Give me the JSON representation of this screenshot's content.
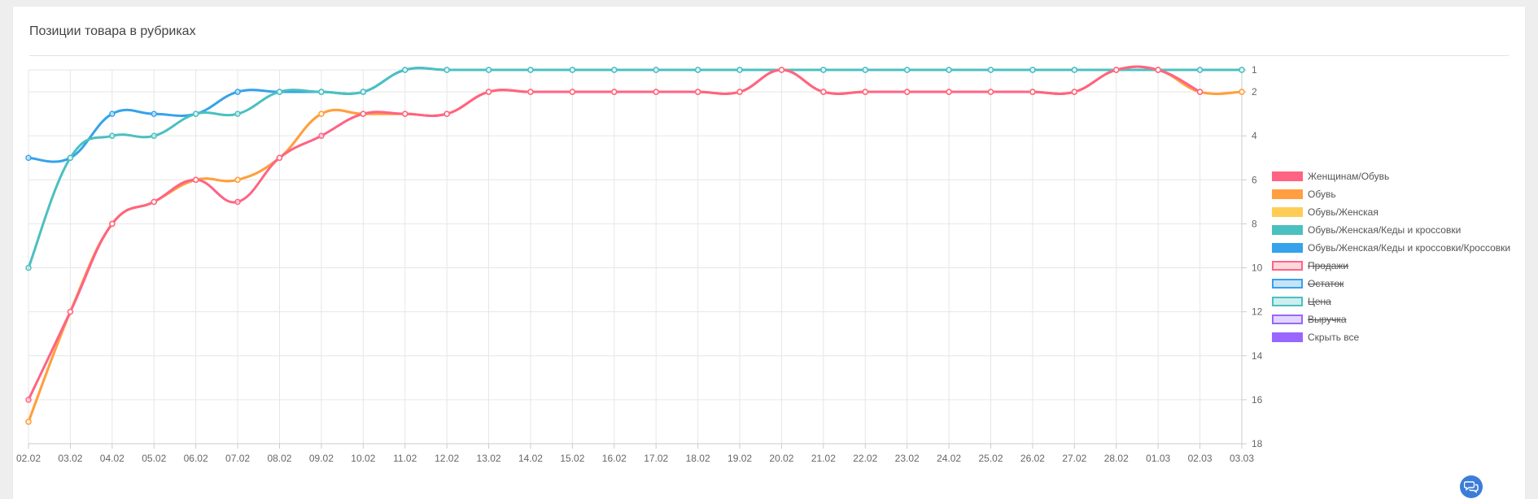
{
  "page": {
    "title": "Позиции товара в рубриках"
  },
  "chart_data": {
    "type": "line",
    "categories": [
      "02.02",
      "03.02",
      "04.02",
      "05.02",
      "06.02",
      "07.02",
      "08.02",
      "09.02",
      "10.02",
      "11.02",
      "12.02",
      "13.02",
      "14.02",
      "15.02",
      "16.02",
      "17.02",
      "18.02",
      "19.02",
      "20.02",
      "21.02",
      "22.02",
      "23.02",
      "24.02",
      "25.02",
      "26.02",
      "27.02",
      "28.02",
      "01.03",
      "02.03",
      "03.03"
    ],
    "y_axis": {
      "position": "right",
      "reversed": true,
      "ylim": [
        1,
        18
      ],
      "ticks": [
        1,
        2,
        4,
        6,
        8,
        10,
        12,
        14,
        16,
        18
      ]
    },
    "grid": true,
    "legend_position": "right",
    "series": [
      {
        "name": "Обувь/Женская/Кеды и кроссовки/Кроссовки",
        "color": "#36a2eb",
        "values": [
          5,
          5,
          3,
          3,
          3,
          2,
          2,
          2,
          2,
          1,
          1,
          1,
          1,
          1,
          1,
          1,
          1,
          1,
          1,
          1,
          1,
          1,
          1,
          1,
          1,
          1,
          1,
          1,
          1,
          1
        ]
      },
      {
        "name": "Обувь/Женская/Кеды и кроссовки",
        "color": "#4bc0c0",
        "values": [
          10,
          5,
          4,
          4,
          3,
          3,
          2,
          2,
          2,
          1,
          1,
          1,
          1,
          1,
          1,
          1,
          1,
          1,
          1,
          1,
          1,
          1,
          1,
          1,
          1,
          1,
          1,
          1,
          1,
          1
        ]
      },
      {
        "name": "Обувь/Женская",
        "color": "#ffcd56",
        "values": [
          17,
          12,
          8,
          7,
          6,
          6,
          5,
          3,
          3,
          3,
          3,
          2,
          2,
          2,
          2,
          2,
          2,
          2,
          1,
          2,
          2,
          2,
          2,
          2,
          2,
          2,
          1,
          1,
          2,
          2
        ]
      },
      {
        "name": "Обувь",
        "color": "#ff9f40",
        "values": [
          17,
          12,
          8,
          7,
          6,
          6,
          5,
          3,
          3,
          3,
          3,
          2,
          2,
          2,
          2,
          2,
          2,
          2,
          1,
          2,
          2,
          2,
          2,
          2,
          2,
          2,
          1,
          1,
          2,
          2
        ]
      },
      {
        "name": "Женщинам/Обувь",
        "color": "#ff6384",
        "values": [
          16,
          12,
          8,
          7,
          6,
          7,
          5,
          4,
          3,
          3,
          3,
          2,
          2,
          2,
          2,
          2,
          2,
          2,
          1,
          2,
          2,
          2,
          2,
          2,
          2,
          2,
          1,
          1,
          2,
          null
        ]
      }
    ],
    "legend": [
      {
        "label": "Женщинам/Обувь",
        "color": "#ff6384",
        "fill": "#ff6384",
        "hidden": false
      },
      {
        "label": "Обувь",
        "color": "#ff9f40",
        "fill": "#ff9f40",
        "hidden": false
      },
      {
        "label": "Обувь/Женская",
        "color": "#ffcd56",
        "fill": "#ffcd56",
        "hidden": false
      },
      {
        "label": "Обувь/Женская/Кеды и кроссовки",
        "color": "#4bc0c0",
        "fill": "#4bc0c0",
        "hidden": false
      },
      {
        "label": "Обувь/Женская/Кеды и кроссовки/Кроссовки",
        "color": "#36a2eb",
        "fill": "#36a2eb",
        "hidden": false
      },
      {
        "label": "Продажи",
        "color": "#ff6384",
        "fill": "#ffd7df",
        "hidden": true
      },
      {
        "label": "Остаток",
        "color": "#36a2eb",
        "fill": "#c6e3f8",
        "hidden": true
      },
      {
        "label": "Цена",
        "color": "#4bc0c0",
        "fill": "#cdeeee",
        "hidden": true
      },
      {
        "label": "Выручка",
        "color": "#9966ff",
        "fill": "#e2d6ff",
        "hidden": true
      },
      {
        "label": "Скрыть все",
        "color": "#9966ff",
        "fill": "#9966ff",
        "hidden": false
      }
    ]
  },
  "chat": {
    "icon": "chat-bubbles-icon"
  }
}
